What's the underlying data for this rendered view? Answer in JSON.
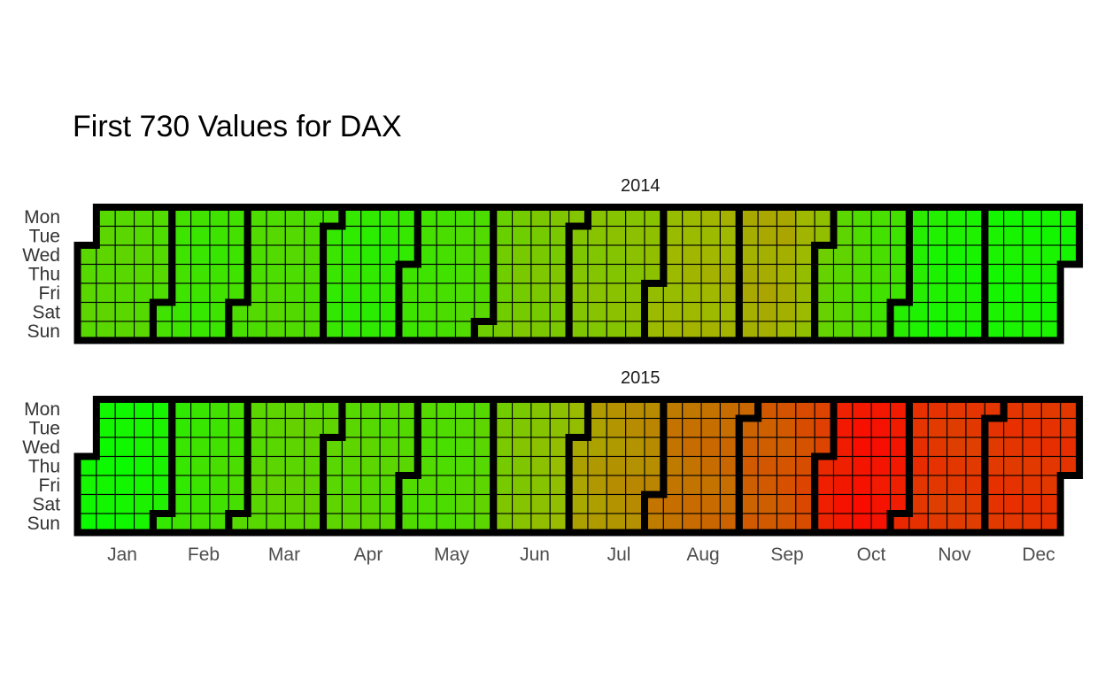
{
  "title": "First 730 Values for DAX",
  "chart_data": {
    "type": "heatmap",
    "title": "First 730 Values for DAX",
    "years": [
      "2014",
      "2015"
    ],
    "weekday_labels": [
      "Mon",
      "Tue",
      "Wed",
      "Thu",
      "Fri",
      "Sat",
      "Sun"
    ],
    "month_labels": [
      "Jan",
      "Feb",
      "Mar",
      "Apr",
      "May",
      "Jun",
      "Jul",
      "Aug",
      "Sep",
      "Oct",
      "Nov",
      "Dec"
    ],
    "color_scale": {
      "low": "#ff0000",
      "mid": "#a0b800",
      "high": "#00ff00"
    },
    "monthly_color_position": {
      "2014": [
        0.72,
        0.82,
        0.74,
        0.86,
        0.78,
        0.62,
        0.58,
        0.5,
        0.46,
        0.76,
        0.92,
        0.93
      ],
      "2015": [
        0.95,
        0.8,
        0.7,
        0.72,
        0.76,
        0.58,
        0.4,
        0.3,
        0.24,
        0.04,
        0.16,
        0.14
      ]
    },
    "grid": true,
    "legend": "none"
  }
}
